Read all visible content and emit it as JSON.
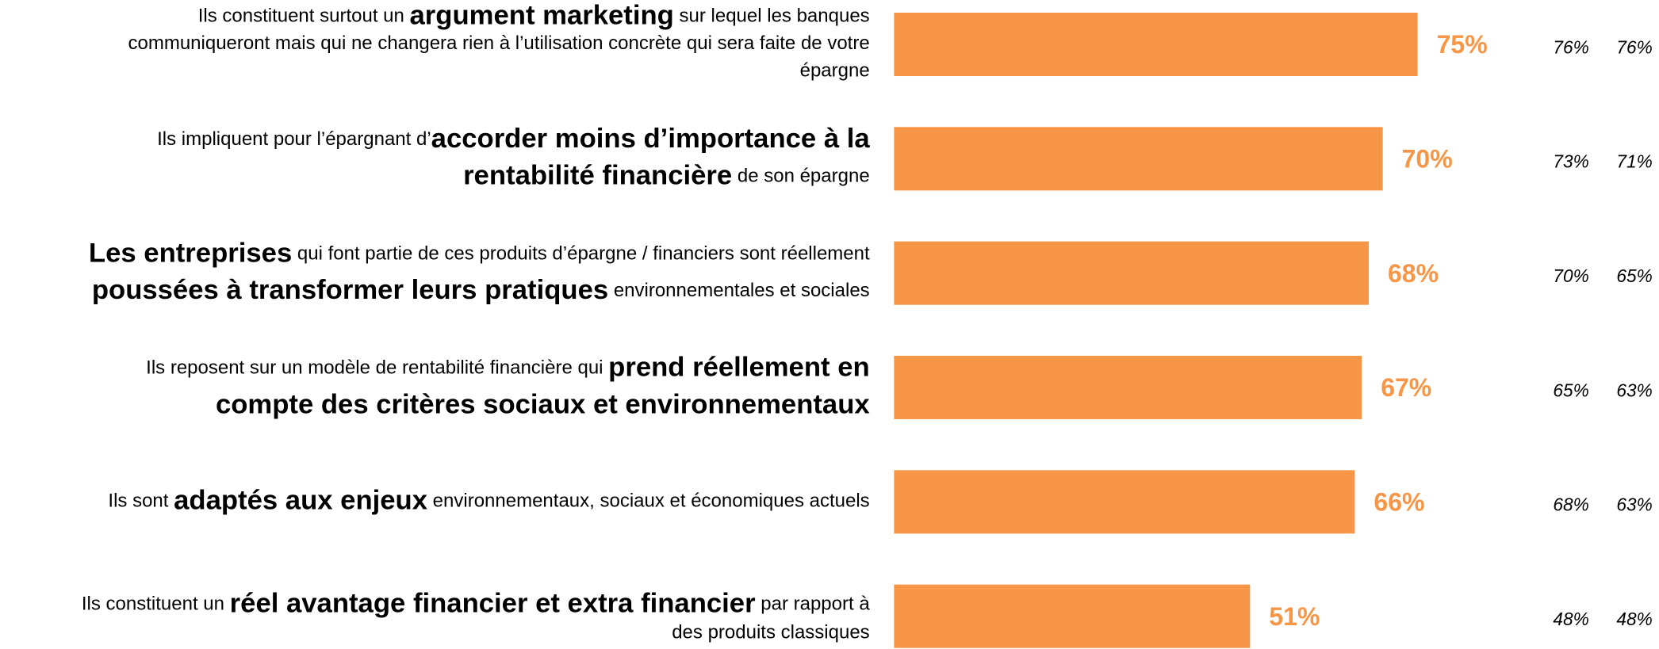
{
  "chart_data": {
    "type": "barh",
    "categories": [
      [
        [
          {
            "text": "Ils constituent surtout un ",
            "bold": false
          },
          {
            "text": "argument marketing",
            "bold": true
          },
          {
            "text": " sur lequel les banques",
            "bold": false
          }
        ],
        [
          {
            "text": "communiqueront mais qui ne changera rien à l’utilisation concrète qui sera faite de votre",
            "bold": false
          }
        ],
        [
          {
            "text": "épargne",
            "bold": false
          }
        ]
      ],
      [
        [
          {
            "text": "Ils impliquent pour l’épargnant d’",
            "bold": false
          },
          {
            "text": "accorder moins d’importance à la",
            "bold": true
          }
        ],
        [
          {
            "text": "rentabilité financière",
            "bold": true
          },
          {
            "text": " de son épargne",
            "bold": false
          }
        ]
      ],
      [
        [
          {
            "text": "Les entreprises",
            "bold": true
          },
          {
            "text": " qui font partie de ces produits d’épargne / financiers sont réellement",
            "bold": false
          }
        ],
        [
          {
            "text": "poussées à transformer leurs pratiques",
            "bold": true
          },
          {
            "text": " environnementales et sociales",
            "bold": false
          }
        ]
      ],
      [
        [
          {
            "text": "Ils reposent sur un modèle de rentabilité financière qui ",
            "bold": false
          },
          {
            "text": "prend réellement en",
            "bold": true
          }
        ],
        [
          {
            "text": "compte des critères sociaux et environnementaux",
            "bold": true
          }
        ]
      ],
      [
        [
          {
            "text": "Ils sont ",
            "bold": false
          },
          {
            "text": "adaptés aux enjeux",
            "bold": true
          },
          {
            "text": " environnementaux, sociaux et économiques actuels",
            "bold": false
          }
        ]
      ],
      [
        [
          {
            "text": "Ils constituent un ",
            "bold": false
          },
          {
            "text": "réel avantage financier et extra financier",
            "bold": true
          },
          {
            "text": " par rapport à",
            "bold": false
          }
        ],
        [
          {
            "text": "des produits classiques",
            "bold": false
          }
        ]
      ]
    ],
    "values": [
      75,
      70,
      68,
      67,
      66,
      51
    ],
    "value_labels": [
      "75%",
      "70%",
      "68%",
      "67%",
      "66%",
      "51%"
    ],
    "color": "#f79646",
    "xlim": [
      0,
      100
    ],
    "comparison_series": [
      {
        "values": [
          76,
          73,
          70,
          65,
          68,
          48
        ],
        "value_labels": [
          "76%",
          "73%",
          "70%",
          "65%",
          "68%",
          "48%"
        ]
      },
      {
        "values": [
          76,
          71,
          65,
          63,
          63,
          48
        ],
        "value_labels": [
          "76%",
          "71%",
          "65%",
          "63%",
          "63%",
          "48%"
        ]
      }
    ]
  }
}
